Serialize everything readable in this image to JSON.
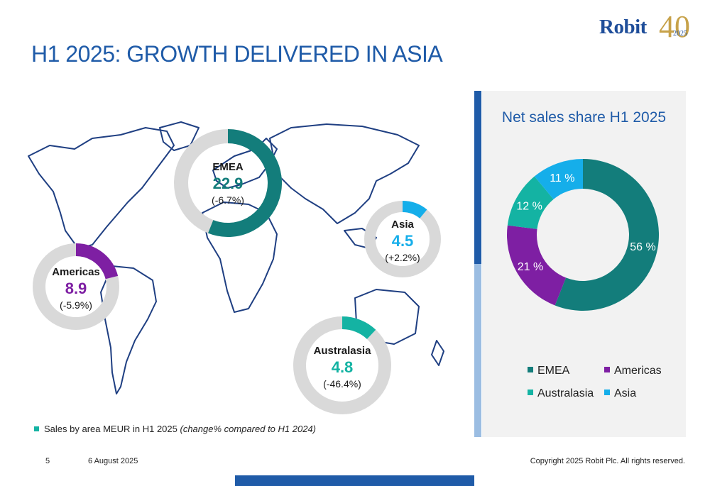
{
  "title": "H1 2025: GROWTH DELIVERED IN ASIA",
  "logo": {
    "word": "Robit",
    "number": "40",
    "year": "2025"
  },
  "colors": {
    "title": "#1f5ba8",
    "emea": "#137d7b",
    "americas": "#7e1fa3",
    "australasia": "#14b3a3",
    "asia": "#15aeea",
    "ring_bg": "#d9d9d9",
    "map_stroke": "#1f3f82"
  },
  "regions": [
    {
      "name": "EMEA",
      "value": "22.9",
      "change": "(-6.7%)"
    },
    {
      "name": "Americas",
      "value": "8.9",
      "change": "(-5.9%)"
    },
    {
      "name": "Asia",
      "value": "4.5",
      "change": "(+2.2%)"
    },
    {
      "name": "Australasia",
      "value": "4.8",
      "change": "(-46.4%)"
    }
  ],
  "footnote": {
    "text": "Sales by area MEUR in H1 2025",
    "italic": "(change% compared to H1 2024)"
  },
  "chart_data": {
    "type": "pie",
    "title": "Net sales share H1 2025",
    "categories": [
      "EMEA",
      "Americas",
      "Australasia",
      "Asia"
    ],
    "values": [
      56,
      21,
      12,
      11
    ],
    "labels": [
      "56 %",
      "21 %",
      "12 %",
      "11 %"
    ],
    "donut": true,
    "legend_position": "bottom"
  },
  "footer": {
    "page": "5",
    "date": "6 August 2025",
    "copyright": "Copyright 2025 Robit Plc. All rights reserved."
  }
}
